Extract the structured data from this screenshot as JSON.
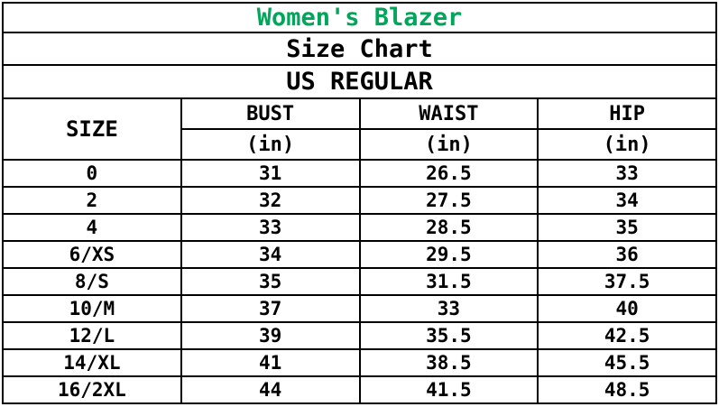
{
  "title": {
    "text": "Women's Blazer",
    "color": "#00a65a"
  },
  "subtitle": "Size Chart",
  "region": "US REGULAR",
  "table": {
    "size_header": "SIZE",
    "unit_label": "(in)",
    "columns": [
      "BUST",
      "WAIST",
      "HIP"
    ],
    "rows": [
      [
        "0",
        "31",
        "26.5",
        "33"
      ],
      [
        "2",
        "32",
        "27.5",
        "34"
      ],
      [
        "4",
        "33",
        "28.5",
        "35"
      ],
      [
        "6/XS",
        "34",
        "29.5",
        "36"
      ],
      [
        "8/S",
        "35",
        "31.5",
        "37.5"
      ],
      [
        "10/M",
        "37",
        "33",
        "40"
      ],
      [
        "12/L",
        "39",
        "35.5",
        "42.5"
      ],
      [
        "14/XL",
        "41",
        "38.5",
        "45.5"
      ],
      [
        "16/2XL",
        "44",
        "41.5",
        "48.5"
      ]
    ]
  },
  "chart_data": {
    "type": "table",
    "title": "Women's Blazer",
    "subtitle": "Size Chart",
    "region": "US REGULAR",
    "unit": "in",
    "columns": [
      "SIZE",
      "BUST (in)",
      "WAIST (in)",
      "HIP (in)"
    ],
    "rows": [
      [
        "0",
        31,
        26.5,
        33
      ],
      [
        "2",
        32,
        27.5,
        34
      ],
      [
        "4",
        33,
        28.5,
        35
      ],
      [
        "6/XS",
        34,
        29.5,
        36
      ],
      [
        "8/S",
        35,
        31.5,
        37.5
      ],
      [
        "10/M",
        37,
        33,
        40
      ],
      [
        "12/L",
        39,
        35.5,
        42.5
      ],
      [
        "14/XL",
        41,
        38.5,
        45.5
      ],
      [
        "16/2XL",
        44,
        41.5,
        48.5
      ]
    ]
  }
}
